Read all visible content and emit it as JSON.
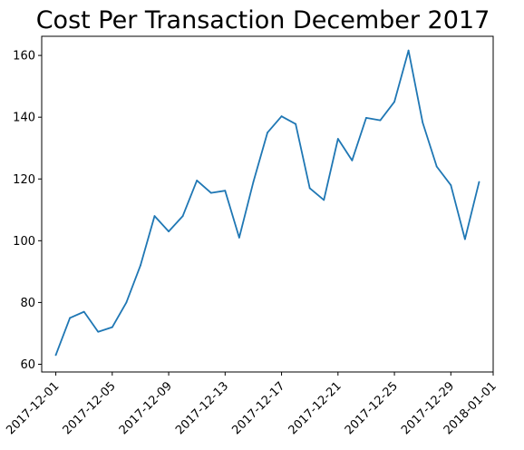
{
  "chart_data": {
    "type": "line",
    "title": "Cost Per Transaction December 2017",
    "xlabel": "",
    "ylabel": "",
    "x": [
      "2017-12-01",
      "2017-12-02",
      "2017-12-03",
      "2017-12-04",
      "2017-12-05",
      "2017-12-06",
      "2017-12-07",
      "2017-12-08",
      "2017-12-09",
      "2017-12-10",
      "2017-12-11",
      "2017-12-12",
      "2017-12-13",
      "2017-12-14",
      "2017-12-15",
      "2017-12-16",
      "2017-12-17",
      "2017-12-18",
      "2017-12-19",
      "2017-12-20",
      "2017-12-21",
      "2017-12-22",
      "2017-12-23",
      "2017-12-24",
      "2017-12-25",
      "2017-12-26",
      "2017-12-27",
      "2017-12-28",
      "2017-12-29",
      "2017-12-30",
      "2017-12-31"
    ],
    "series": [
      {
        "color": "#1f77b4",
        "values": [
          63,
          75,
          77,
          70.5,
          72,
          80,
          92,
          108,
          103,
          108,
          119.5,
          115.5,
          116.2,
          101,
          119,
          135,
          140.3,
          137.8,
          117,
          113.2,
          133,
          126,
          139.8,
          139,
          145,
          161.6,
          138.3,
          124,
          118,
          100.5,
          119
        ]
      }
    ],
    "xlim": [
      "2017-11-30",
      "2018-01-01"
    ],
    "ylim": [
      57.5,
      166.2
    ],
    "x_ticks": [
      "2017-12-01",
      "2017-12-05",
      "2017-12-09",
      "2017-12-13",
      "2017-12-17",
      "2017-12-21",
      "2017-12-25",
      "2017-12-29",
      "2018-01-01"
    ],
    "y_ticks": [
      60,
      80,
      100,
      120,
      140,
      160
    ],
    "grid": false,
    "legend": "none"
  }
}
